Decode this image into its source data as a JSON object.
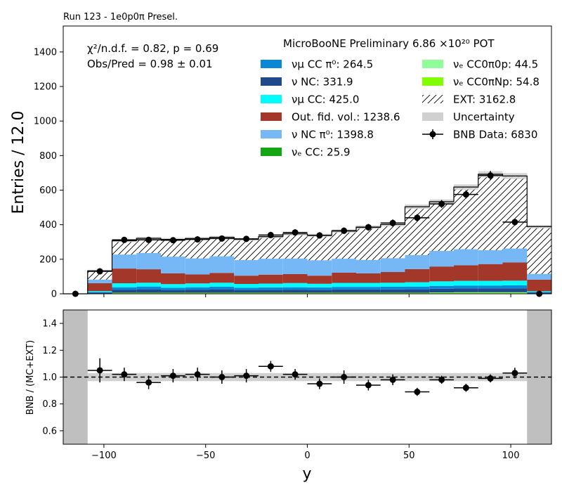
{
  "chart_data": [
    {
      "type": "bar",
      "title": "Run 123 - 1e0p0π Presel.",
      "ylabel": "Entries / 12.0",
      "xlim": [
        -120,
        120
      ],
      "ylim": [
        0,
        1550
      ],
      "yticks": [
        0,
        200,
        400,
        600,
        800,
        1000,
        1200,
        1400
      ],
      "bin_edges": [
        -120,
        -108,
        -96,
        -84,
        -72,
        -60,
        -48,
        -36,
        -24,
        -12,
        0,
        12,
        24,
        36,
        48,
        60,
        72,
        84,
        96,
        108,
        120
      ],
      "stack": [
        {
          "name": "νₑ CC: 25.9",
          "color": "#15a614",
          "values": [
            0,
            0,
            1,
            1,
            1,
            1,
            1,
            1,
            1,
            1,
            1,
            1,
            1,
            1,
            1,
            2,
            2,
            2,
            2,
            0
          ]
        },
        {
          "name": "νₑ CC0π0p: 44.5",
          "color": "#8ffe98",
          "values": [
            0,
            1,
            2,
            2,
            2,
            2,
            2,
            2,
            2,
            2,
            2,
            2,
            2,
            2,
            2,
            3,
            3,
            3,
            3,
            0
          ]
        },
        {
          "name": "νₑ CC0πNp: 54.8",
          "color": "#80fd00",
          "values": [
            0,
            1,
            3,
            3,
            3,
            3,
            3,
            3,
            3,
            3,
            3,
            3,
            3,
            3,
            3,
            3,
            4,
            4,
            4,
            1
          ]
        },
        {
          "name": "ν NC: 331.9",
          "color": "#1e4a8c",
          "values": [
            0,
            5,
            18,
            20,
            16,
            18,
            20,
            16,
            17,
            18,
            17,
            19,
            19,
            19,
            20,
            21,
            22,
            22,
            22,
            5
          ]
        },
        {
          "name": "νμ CC π⁰: 264.5",
          "color": "#0a88d6",
          "values": [
            0,
            4,
            14,
            16,
            13,
            14,
            15,
            13,
            14,
            14,
            14,
            15,
            15,
            16,
            16,
            17,
            17,
            17,
            18,
            4
          ]
        },
        {
          "name": "νμ CC: 425.0",
          "color": "#00fcfe",
          "values": [
            0,
            5,
            23,
            22,
            21,
            22,
            23,
            22,
            22,
            24,
            21,
            23,
            23,
            23,
            25,
            26,
            27,
            27,
            27,
            5
          ]
        },
        {
          "name": "Out. fid. vol.: 1238.6",
          "color": "#a3382a",
          "values": [
            0,
            45,
            85,
            78,
            62,
            52,
            57,
            48,
            52,
            52,
            47,
            60,
            55,
            62,
            76,
            86,
            90,
            97,
            106,
            67
          ]
        },
        {
          "name": "ν NC π⁰: 1398.8",
          "color": "#75b8f5",
          "values": [
            0,
            21,
            81,
            94,
            97,
            93,
            96,
            90,
            92,
            90,
            89,
            80,
            78,
            80,
            81,
            90,
            93,
            80,
            80,
            33
          ]
        },
        {
          "name": "EXT: 3162.8",
          "color": "#ffffff",
          "values": [
            0,
            51,
            80,
            85,
            100,
            115,
            110,
            120,
            128,
            143,
            145,
            160,
            190,
            195,
            280,
            285,
            360,
            440,
            420,
            274
          ]
        }
      ],
      "uncertainty_label": "Uncertainty",
      "data_label": "BNB Data: 6830",
      "data_x": [
        -114,
        -102,
        -90,
        -78,
        -66,
        -54,
        -42,
        -30,
        -18,
        -6,
        6,
        18,
        30,
        42,
        54,
        66,
        78,
        90,
        102,
        114
      ],
      "data_y": [
        0,
        130,
        312,
        312,
        310,
        315,
        320,
        318,
        340,
        355,
        338,
        365,
        385,
        410,
        440,
        520,
        575,
        685,
        415,
        0
      ],
      "legend_header": "MicroBooNE Preliminary 6.86 ×10²⁰ POT",
      "stats": [
        "χ²/n.d.f. = 0.82, p = 0.69",
        "Obs/Pred = 0.98 ± 0.01"
      ]
    },
    {
      "type": "scatter",
      "xlabel": "y",
      "ylabel": "BNB / (MC+EXT)",
      "xlim": [
        -120,
        120
      ],
      "ylim": [
        0.5,
        1.5
      ],
      "xticks": [
        -100,
        -50,
        0,
        50,
        100
      ],
      "yticks": [
        0.6,
        0.8,
        1.0,
        1.2,
        1.4
      ],
      "reference_line": 1.0,
      "masked_regions": [
        [
          -120,
          -108
        ],
        [
          108,
          120
        ]
      ],
      "x": [
        -102,
        -90,
        -78,
        -66,
        -54,
        -42,
        -30,
        -18,
        -6,
        6,
        18,
        30,
        42,
        54,
        66,
        78,
        90,
        102
      ],
      "y": [
        1.05,
        1.02,
        0.96,
        1.01,
        1.02,
        1.0,
        1.01,
        1.08,
        1.02,
        0.95,
        1.0,
        0.94,
        0.98,
        0.89,
        0.98,
        0.92,
        0.99,
        1.03
      ],
      "yerr": [
        0.09,
        0.05,
        0.05,
        0.05,
        0.05,
        0.05,
        0.05,
        0.04,
        0.04,
        0.04,
        0.05,
        0.04,
        0.04,
        0.03,
        0.03,
        0.03,
        0.03,
        0.04
      ],
      "band": [
        0.03,
        0.03,
        0.03,
        0.03,
        0.03,
        0.03,
        0.03,
        0.03,
        0.03,
        0.03,
        0.03,
        0.03,
        0.03,
        0.03,
        0.03,
        0.03,
        0.03,
        0.03
      ]
    }
  ],
  "legend_colors": {
    "uncertainty": "#d0d0d0",
    "mask": "#bfbfbf"
  }
}
